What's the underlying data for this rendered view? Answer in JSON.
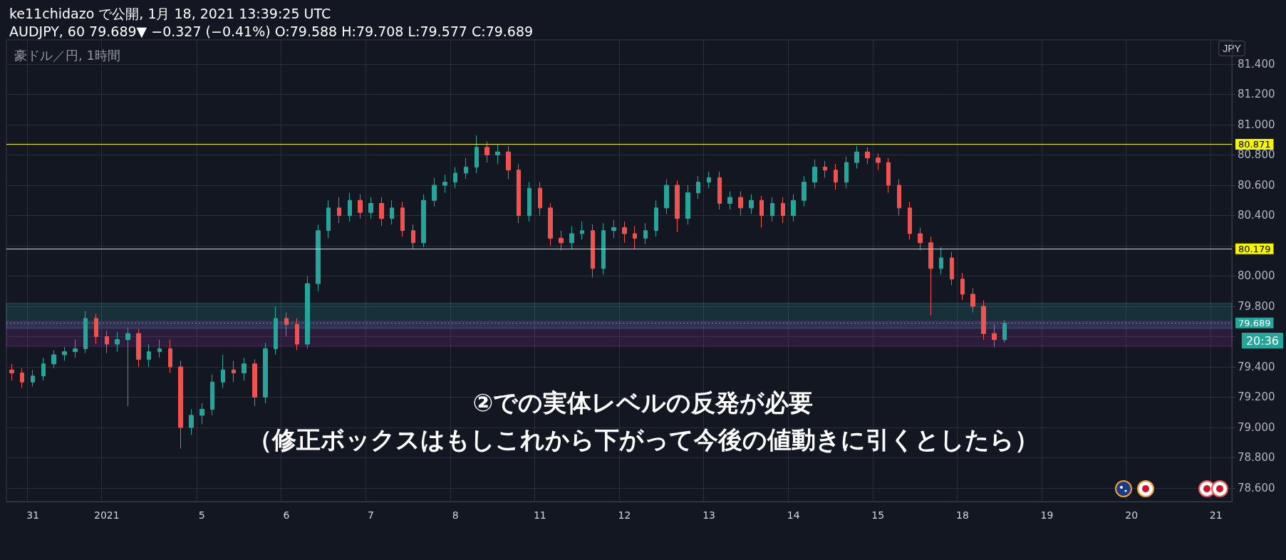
{
  "chart_data": {
    "type": "candlestick",
    "title": "ke11chidazo で公開, 1月 18, 2021 13:39:25 UTC",
    "subtitle": "AUDJPY, 60 79.689▼ −0.327 (−0.41%) O:79.588 H:79.708 L:79.577 C:79.689",
    "ylabel": "JPY",
    "annotations": [
      "豪ドル／円, 1時間",
      "②での実体レベルの反発が必要",
      "（修正ボックスはもしこれから下がって今後の値動きに引くとしたら）",
      "20:36"
    ],
    "categories": [
      null,
      null,
      "31",
      null,
      null,
      null,
      null,
      null,
      null,
      "2021",
      null,
      null,
      null,
      null,
      null,
      null,
      null,
      null,
      "5",
      null,
      null,
      null,
      null,
      null,
      null,
      null,
      "6",
      null,
      null,
      null,
      null,
      null,
      null,
      null,
      "7",
      null,
      null,
      null,
      null,
      null,
      null,
      null,
      "8",
      null,
      null,
      null,
      null,
      null,
      null,
      null,
      "11",
      null,
      null,
      null,
      null,
      null,
      null,
      null,
      "12",
      null,
      null,
      null,
      null,
      null,
      null,
      null,
      "13",
      null,
      null,
      null,
      null,
      null,
      null,
      null,
      "14",
      null,
      null,
      null,
      null,
      null,
      null,
      null,
      "15",
      null,
      null,
      null,
      null,
      null,
      null,
      null,
      "18",
      null,
      null,
      null,
      null,
      null,
      null,
      null,
      "19",
      null,
      null,
      null,
      null,
      null,
      null,
      null,
      "20",
      null,
      null,
      null,
      null,
      null,
      null,
      null,
      "21",
      null
    ],
    "ohlc": [
      [
        79.38,
        79.42,
        79.31,
        79.36
      ],
      [
        79.36,
        79.39,
        79.26,
        79.3
      ],
      [
        79.3,
        79.38,
        79.27,
        79.34
      ],
      [
        79.34,
        79.46,
        79.31,
        79.42
      ],
      [
        79.42,
        79.51,
        79.39,
        79.48
      ],
      [
        79.48,
        79.53,
        79.44,
        79.5
      ],
      [
        79.5,
        79.58,
        79.46,
        79.52
      ],
      [
        79.52,
        79.77,
        79.49,
        79.72
      ],
      [
        79.72,
        79.75,
        79.55,
        79.6
      ],
      [
        79.6,
        79.64,
        79.49,
        79.55
      ],
      [
        79.55,
        79.63,
        79.5,
        79.58
      ],
      [
        79.58,
        79.66,
        79.14,
        79.62
      ],
      [
        79.62,
        79.65,
        79.4,
        79.45
      ],
      [
        79.45,
        79.55,
        79.4,
        79.5
      ],
      [
        79.5,
        79.58,
        79.46,
        79.52
      ],
      [
        79.52,
        79.58,
        79.36,
        79.4
      ],
      [
        79.4,
        79.44,
        78.86,
        79.0
      ],
      [
        79.0,
        79.12,
        78.95,
        79.08
      ],
      [
        79.08,
        79.16,
        79.02,
        79.12
      ],
      [
        79.12,
        79.35,
        79.08,
        79.3
      ],
      [
        79.3,
        79.48,
        79.26,
        79.38
      ],
      [
        79.38,
        79.44,
        79.3,
        79.36
      ],
      [
        79.36,
        79.46,
        79.31,
        79.42
      ],
      [
        79.42,
        79.45,
        79.14,
        79.2
      ],
      [
        79.2,
        79.56,
        79.16,
        79.52
      ],
      [
        79.52,
        79.8,
        79.48,
        79.72
      ],
      [
        79.72,
        79.76,
        79.6,
        79.68
      ],
      [
        79.68,
        79.72,
        79.51,
        79.55
      ],
      [
        79.55,
        80.0,
        79.52,
        79.95
      ],
      [
        79.95,
        80.34,
        79.9,
        80.3
      ],
      [
        80.3,
        80.5,
        80.25,
        80.45
      ],
      [
        80.45,
        80.52,
        80.35,
        80.4
      ],
      [
        80.4,
        80.55,
        80.36,
        80.5
      ],
      [
        80.5,
        80.54,
        80.38,
        80.42
      ],
      [
        80.42,
        80.52,
        80.38,
        80.48
      ],
      [
        80.48,
        80.52,
        80.33,
        80.38
      ],
      [
        80.38,
        80.5,
        80.34,
        80.45
      ],
      [
        80.45,
        80.49,
        80.26,
        80.3
      ],
      [
        80.3,
        80.34,
        80.18,
        80.22
      ],
      [
        80.22,
        80.54,
        80.19,
        80.5
      ],
      [
        80.5,
        80.65,
        80.46,
        80.6
      ],
      [
        80.6,
        80.67,
        80.55,
        80.62
      ],
      [
        80.62,
        80.72,
        80.58,
        80.68
      ],
      [
        80.68,
        80.78,
        80.64,
        80.72
      ],
      [
        80.72,
        80.93,
        80.68,
        80.85
      ],
      [
        80.85,
        80.89,
        80.75,
        80.8
      ],
      [
        80.8,
        80.87,
        80.74,
        80.82
      ],
      [
        80.82,
        80.86,
        80.64,
        80.7
      ],
      [
        80.7,
        80.74,
        80.35,
        80.4
      ],
      [
        80.4,
        80.62,
        80.36,
        80.58
      ],
      [
        80.58,
        80.62,
        80.4,
        80.45
      ],
      [
        80.45,
        80.48,
        80.2,
        80.25
      ],
      [
        80.25,
        80.3,
        80.17,
        80.22
      ],
      [
        80.22,
        80.33,
        80.18,
        80.28
      ],
      [
        80.28,
        80.36,
        80.24,
        80.3
      ],
      [
        80.3,
        80.34,
        79.99,
        80.05
      ],
      [
        80.05,
        80.35,
        80.01,
        80.3
      ],
      [
        80.3,
        80.37,
        80.25,
        80.32
      ],
      [
        80.32,
        80.36,
        80.22,
        80.28
      ],
      [
        80.28,
        80.33,
        80.18,
        80.25
      ],
      [
        80.25,
        80.35,
        80.21,
        80.3
      ],
      [
        80.3,
        80.5,
        80.26,
        80.45
      ],
      [
        80.45,
        80.64,
        80.41,
        80.6
      ],
      [
        80.6,
        80.63,
        80.29,
        80.38
      ],
      [
        80.38,
        80.6,
        80.34,
        80.55
      ],
      [
        80.55,
        80.66,
        80.51,
        80.62
      ],
      [
        80.62,
        80.69,
        80.58,
        80.65
      ],
      [
        80.65,
        80.69,
        80.44,
        80.48
      ],
      [
        80.48,
        80.56,
        80.44,
        80.52
      ],
      [
        80.52,
        80.56,
        80.4,
        80.45
      ],
      [
        80.45,
        80.54,
        80.41,
        80.5
      ],
      [
        80.5,
        80.53,
        80.32,
        80.4
      ],
      [
        80.4,
        80.52,
        80.36,
        80.48
      ],
      [
        80.48,
        80.52,
        80.35,
        80.4
      ],
      [
        80.4,
        80.54,
        80.36,
        80.5
      ],
      [
        80.5,
        80.66,
        80.46,
        80.62
      ],
      [
        80.62,
        80.77,
        80.58,
        80.72
      ],
      [
        80.72,
        80.76,
        80.65,
        80.7
      ],
      [
        80.7,
        80.74,
        80.57,
        80.62
      ],
      [
        80.62,
        80.79,
        80.58,
        80.75
      ],
      [
        80.75,
        80.86,
        80.71,
        80.82
      ],
      [
        80.82,
        80.85,
        80.74,
        80.78
      ],
      [
        80.78,
        80.81,
        80.7,
        80.75
      ],
      [
        80.75,
        80.78,
        80.55,
        80.6
      ],
      [
        80.6,
        80.64,
        80.4,
        80.45
      ],
      [
        80.45,
        80.49,
        80.24,
        80.28
      ],
      [
        80.28,
        80.32,
        80.17,
        80.22
      ],
      [
        80.22,
        80.26,
        79.74,
        80.05
      ],
      [
        80.05,
        80.19,
        80.01,
        80.12
      ],
      [
        80.12,
        80.16,
        79.94,
        79.98
      ],
      [
        79.98,
        80.02,
        79.84,
        79.88
      ],
      [
        79.88,
        79.92,
        79.76,
        79.8
      ],
      [
        79.8,
        79.84,
        79.58,
        79.62
      ],
      [
        79.62,
        79.68,
        79.53,
        79.58
      ],
      [
        79.58,
        79.71,
        79.56,
        79.689
      ],
      null,
      null,
      null,
      null,
      null,
      null,
      null,
      null,
      null,
      null,
      null,
      null,
      null,
      null,
      null,
      null,
      null,
      null,
      null,
      null,
      null
    ],
    "ylim": [
      78.51,
      81.56
    ],
    "yticks": [
      {
        "value": 78.6,
        "label": "78.600"
      },
      {
        "value": 78.8,
        "label": "78.800"
      },
      {
        "value": 79.0,
        "label": "79.000"
      },
      {
        "value": 79.2,
        "label": "79.200"
      },
      {
        "value": 79.4,
        "label": "79.400"
      },
      {
        "value": 79.6,
        "label": null
      },
      {
        "value": 79.8,
        "label": "79.800"
      },
      {
        "value": 80.0,
        "label": "80.000"
      },
      {
        "value": 80.2,
        "label": null
      },
      {
        "value": 80.4,
        "label": "80.400"
      },
      {
        "value": 80.6,
        "label": "80.600"
      },
      {
        "value": 80.8,
        "label": "80.800"
      },
      {
        "value": 81.0,
        "label": "81.000"
      },
      {
        "value": 81.2,
        "label": "81.200"
      },
      {
        "value": 81.4,
        "label": "81.400"
      }
    ],
    "ref_lines": [
      {
        "axis": "y",
        "value": 80.871,
        "label": "80.871",
        "color": "#f5f500",
        "line_style": "solid"
      },
      {
        "axis": "y",
        "value": 80.179,
        "label": "80.179",
        "color": "#f5f500",
        "line_style": "solid"
      },
      {
        "axis": "y",
        "value": 79.689,
        "label": "79.689",
        "color": "#26a69a",
        "line_style": "dotted"
      }
    ],
    "bands": [
      {
        "axis": "y",
        "from": 79.655,
        "to": 79.82,
        "color": "#3ee8f0"
      },
      {
        "axis": "y",
        "from": 79.535,
        "to": 79.7,
        "color": "#e040fb"
      }
    ],
    "grid": true
  }
}
